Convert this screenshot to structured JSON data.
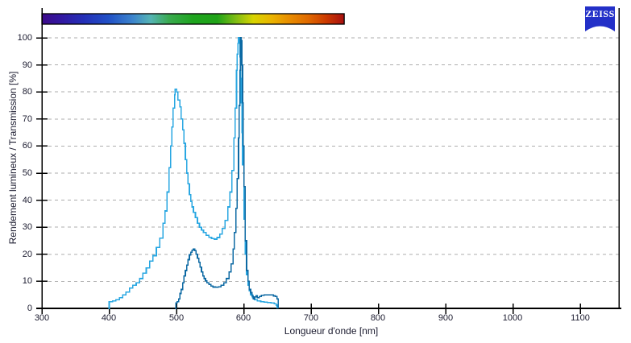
{
  "app": {
    "logo_text": "ZEISS",
    "logo_color": "#2330c8"
  },
  "chart_data": {
    "type": "line",
    "title": "",
    "xlabel": "Longueur d'onde [nm]",
    "ylabel": "Rendement lumineux / Transmission [%]",
    "xlim": [
      300,
      1157
    ],
    "ylim": [
      0,
      100
    ],
    "x_ticks": [
      300,
      400,
      500,
      600,
      700,
      800,
      900,
      1000,
      1100
    ],
    "y_ticks": [
      0,
      10,
      20,
      30,
      40,
      50,
      60,
      70,
      80,
      90,
      100
    ],
    "grid": "horizontal-dashed",
    "grid_color": "#adadad",
    "axis_color": "#000000",
    "legend": "none",
    "series": [
      {
        "name": "transmission-curve-light",
        "color": "#29a7e2",
        "points": [
          [
            399,
            0
          ],
          [
            400,
            2.5
          ],
          [
            405,
            2.8
          ],
          [
            410,
            3.2
          ],
          [
            415,
            4
          ],
          [
            420,
            5
          ],
          [
            425,
            6
          ],
          [
            430,
            7.5
          ],
          [
            435,
            8.5
          ],
          [
            440,
            9.5
          ],
          [
            445,
            11
          ],
          [
            450,
            13
          ],
          [
            455,
            15
          ],
          [
            460,
            17.5
          ],
          [
            465,
            19.5
          ],
          [
            470,
            22.5
          ],
          [
            475,
            26
          ],
          [
            480,
            31.5
          ],
          [
            483,
            36
          ],
          [
            486,
            43
          ],
          [
            489,
            52
          ],
          [
            491,
            60
          ],
          [
            493,
            67
          ],
          [
            495,
            74
          ],
          [
            497,
            79
          ],
          [
            498,
            81
          ],
          [
            500,
            80
          ],
          [
            502,
            77
          ],
          [
            505,
            74.5
          ],
          [
            507,
            70
          ],
          [
            509,
            66
          ],
          [
            511,
            61
          ],
          [
            513,
            55
          ],
          [
            515,
            50
          ],
          [
            517,
            46
          ],
          [
            519,
            42
          ],
          [
            521,
            39.5
          ],
          [
            523,
            37.5
          ],
          [
            525,
            35.5
          ],
          [
            528,
            33.5
          ],
          [
            531,
            31.5
          ],
          [
            534,
            30
          ],
          [
            537,
            29
          ],
          [
            540,
            28
          ],
          [
            544,
            27
          ],
          [
            548,
            26.3
          ],
          [
            552,
            25.8
          ],
          [
            556,
            25.6
          ],
          [
            560,
            26.2
          ],
          [
            564,
            27.5
          ],
          [
            568,
            29.5
          ],
          [
            572,
            32.5
          ],
          [
            576,
            37.5
          ],
          [
            579,
            43
          ],
          [
            582,
            51
          ],
          [
            585,
            63
          ],
          [
            587,
            74
          ],
          [
            589,
            88
          ],
          [
            590,
            94
          ],
          [
            591,
            98
          ],
          [
            592,
            100
          ],
          [
            593,
            99
          ],
          [
            594,
            93
          ],
          [
            595,
            85
          ],
          [
            596,
            76
          ],
          [
            597,
            65
          ],
          [
            598,
            53
          ],
          [
            600,
            33
          ],
          [
            602,
            20
          ],
          [
            604,
            12.5
          ],
          [
            606,
            8.5
          ],
          [
            608,
            6.5
          ],
          [
            610,
            5
          ],
          [
            613,
            4
          ],
          [
            616,
            3.2
          ],
          [
            620,
            2.8
          ],
          [
            625,
            2.5
          ],
          [
            630,
            2.3
          ],
          [
            635,
            2.2
          ],
          [
            640,
            2
          ],
          [
            645,
            1.7
          ],
          [
            648,
            1.2
          ],
          [
            649,
            0
          ]
        ]
      },
      {
        "name": "transmission-curve-dark",
        "color": "#0c69a3",
        "points": [
          [
            498,
            0
          ],
          [
            499,
            2
          ],
          [
            501,
            2.5
          ],
          [
            503,
            3.5
          ],
          [
            505,
            5.5
          ],
          [
            507,
            7
          ],
          [
            509,
            9.5
          ],
          [
            511,
            12
          ],
          [
            513,
            14
          ],
          [
            515,
            16
          ],
          [
            517,
            18
          ],
          [
            519,
            19.8
          ],
          [
            521,
            20.7
          ],
          [
            523,
            21.5
          ],
          [
            525,
            22
          ],
          [
            527,
            21.3
          ],
          [
            529,
            20
          ],
          [
            531,
            18.5
          ],
          [
            533,
            17
          ],
          [
            535,
            15.2
          ],
          [
            537,
            13.5
          ],
          [
            539,
            12
          ],
          [
            541,
            11
          ],
          [
            543,
            10.2
          ],
          [
            545,
            9.5
          ],
          [
            548,
            8.8
          ],
          [
            551,
            8.2
          ],
          [
            554,
            7.9
          ],
          [
            558,
            7.8
          ],
          [
            562,
            8
          ],
          [
            566,
            8.6
          ],
          [
            570,
            9.5
          ],
          [
            574,
            11
          ],
          [
            578,
            13.5
          ],
          [
            581,
            16.5
          ],
          [
            584,
            22
          ],
          [
            586,
            28
          ],
          [
            588,
            37
          ],
          [
            590,
            48
          ],
          [
            592,
            63
          ],
          [
            593,
            75
          ],
          [
            594,
            88
          ],
          [
            595,
            100
          ],
          [
            596,
            99
          ],
          [
            597,
            90
          ],
          [
            598,
            76
          ],
          [
            599,
            60
          ],
          [
            600,
            45
          ],
          [
            602,
            25
          ],
          [
            604,
            14
          ],
          [
            606,
            10
          ],
          [
            608,
            7
          ],
          [
            610,
            5.8
          ],
          [
            612,
            4.5
          ],
          [
            614,
            3.5
          ],
          [
            616,
            4.2
          ],
          [
            618,
            4.6
          ],
          [
            620,
            4
          ],
          [
            623,
            4.4
          ],
          [
            626,
            4.8
          ],
          [
            630,
            5
          ],
          [
            635,
            5
          ],
          [
            640,
            5
          ],
          [
            644,
            4.6
          ],
          [
            647,
            4.4
          ],
          [
            649,
            3.5
          ],
          [
            651,
            0
          ]
        ]
      }
    ],
    "spectrum_bar": {
      "range_nm": [
        300,
        749
      ],
      "border_color": "#000000",
      "stops": [
        [
          "0%",
          "#3c0a8a"
        ],
        [
          "6%",
          "#3317a0"
        ],
        [
          "14%",
          "#2430b8"
        ],
        [
          "22%",
          "#2150c6"
        ],
        [
          "30%",
          "#3c84cc"
        ],
        [
          "36%",
          "#55b4b4"
        ],
        [
          "42%",
          "#3aaa50"
        ],
        [
          "50%",
          "#1ea41e"
        ],
        [
          "58%",
          "#20a318"
        ],
        [
          "64%",
          "#7cbc14"
        ],
        [
          "70%",
          "#d8d400"
        ],
        [
          "76%",
          "#eab400"
        ],
        [
          "82%",
          "#e88c00"
        ],
        [
          "88%",
          "#e06a00"
        ],
        [
          "94%",
          "#cc3a00"
        ],
        [
          "100%",
          "#a81010"
        ]
      ]
    }
  }
}
